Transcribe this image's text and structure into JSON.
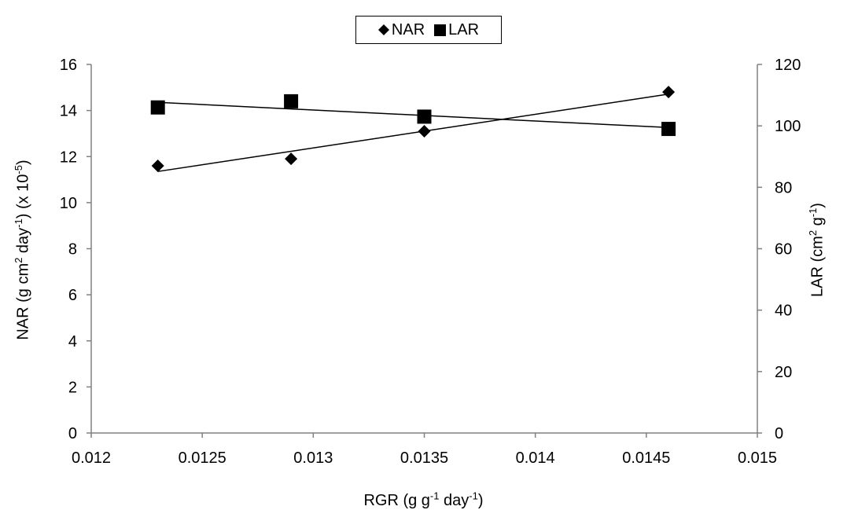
{
  "chart_data": {
    "type": "scatter",
    "x_axis": {
      "ticks": [
        "0.012",
        "0.0125",
        "0.013",
        "0.0135",
        "0.014",
        "0.0145",
        "0.015"
      ],
      "range": [
        0.012,
        0.015
      ]
    },
    "y_axis_left": {
      "ticks": [
        "0",
        "2",
        "4",
        "6",
        "8",
        "10",
        "12",
        "14",
        "16"
      ],
      "range": [
        0,
        16
      ]
    },
    "y_axis_right": {
      "ticks": [
        "0",
        "20",
        "40",
        "60",
        "80",
        "100",
        "120"
      ],
      "range": [
        0,
        120
      ]
    },
    "series": [
      {
        "name": "NAR",
        "marker": "diamond",
        "axis": "left",
        "points": [
          {
            "x": 0.0123,
            "y": 11.6
          },
          {
            "x": 0.0129,
            "y": 11.9
          },
          {
            "x": 0.0135,
            "y": 13.1
          },
          {
            "x": 0.0146,
            "y": 14.8
          }
        ],
        "trendline": {
          "type": "linear"
        }
      },
      {
        "name": "LAR",
        "marker": "square",
        "axis": "right",
        "points": [
          {
            "x": 0.0123,
            "y": 106
          },
          {
            "x": 0.0129,
            "y": 108
          },
          {
            "x": 0.0135,
            "y": 103
          },
          {
            "x": 0.0146,
            "y": 99
          }
        ],
        "trendline": {
          "type": "linear"
        }
      }
    ],
    "legend_position": "top-center",
    "grid": false
  },
  "legend": {
    "nar_label": "NAR",
    "lar_label": "LAR"
  },
  "axis_titles": {
    "x": {
      "a": "RGR (g g",
      "b": "-1",
      "c": " day",
      "d": "-1",
      "e": ")"
    },
    "y1": {
      "a": "NAR (g cm",
      "b": "2",
      "c": " day",
      "d": "-1",
      "e": ") (x 10",
      "f": "-5",
      "g": ")"
    },
    "y2": {
      "a": "LAR (cm",
      "b": "2",
      "c": " g",
      "d": "-1",
      "e": ")"
    }
  },
  "colors": {
    "marker": "#000000",
    "axis": "#808080",
    "trendline": "#000000"
  }
}
